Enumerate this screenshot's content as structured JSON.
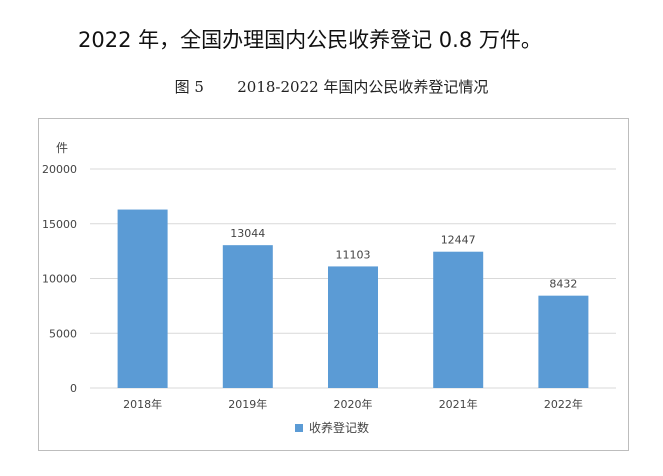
{
  "intro_text": "2022 年，全国办理国内公民收养登记 0.8 万件。",
  "figure_caption": "图 5       2018-2022 年国内公民收养登记情况",
  "chart_data": {
    "type": "bar",
    "title": "2018-2022 年国内公民收养登记情况",
    "categories": [
      "2018年",
      "2019年",
      "2020年",
      "2021年",
      "2022年"
    ],
    "series": [
      {
        "name": "收养登记数",
        "values": [
          16296,
          13044,
          11103,
          12447,
          8432
        ],
        "data_labels": [
          "",
          "13044",
          "11103",
          "12447",
          "8432"
        ]
      }
    ],
    "ylabel": "件",
    "ylim": [
      0,
      20000
    ],
    "yticks": [
      0,
      5000,
      10000,
      15000,
      20000
    ],
    "grid": true,
    "legend": "bottom",
    "bar_color": "#5b9bd5",
    "grid_color": "#d9d9d9"
  }
}
